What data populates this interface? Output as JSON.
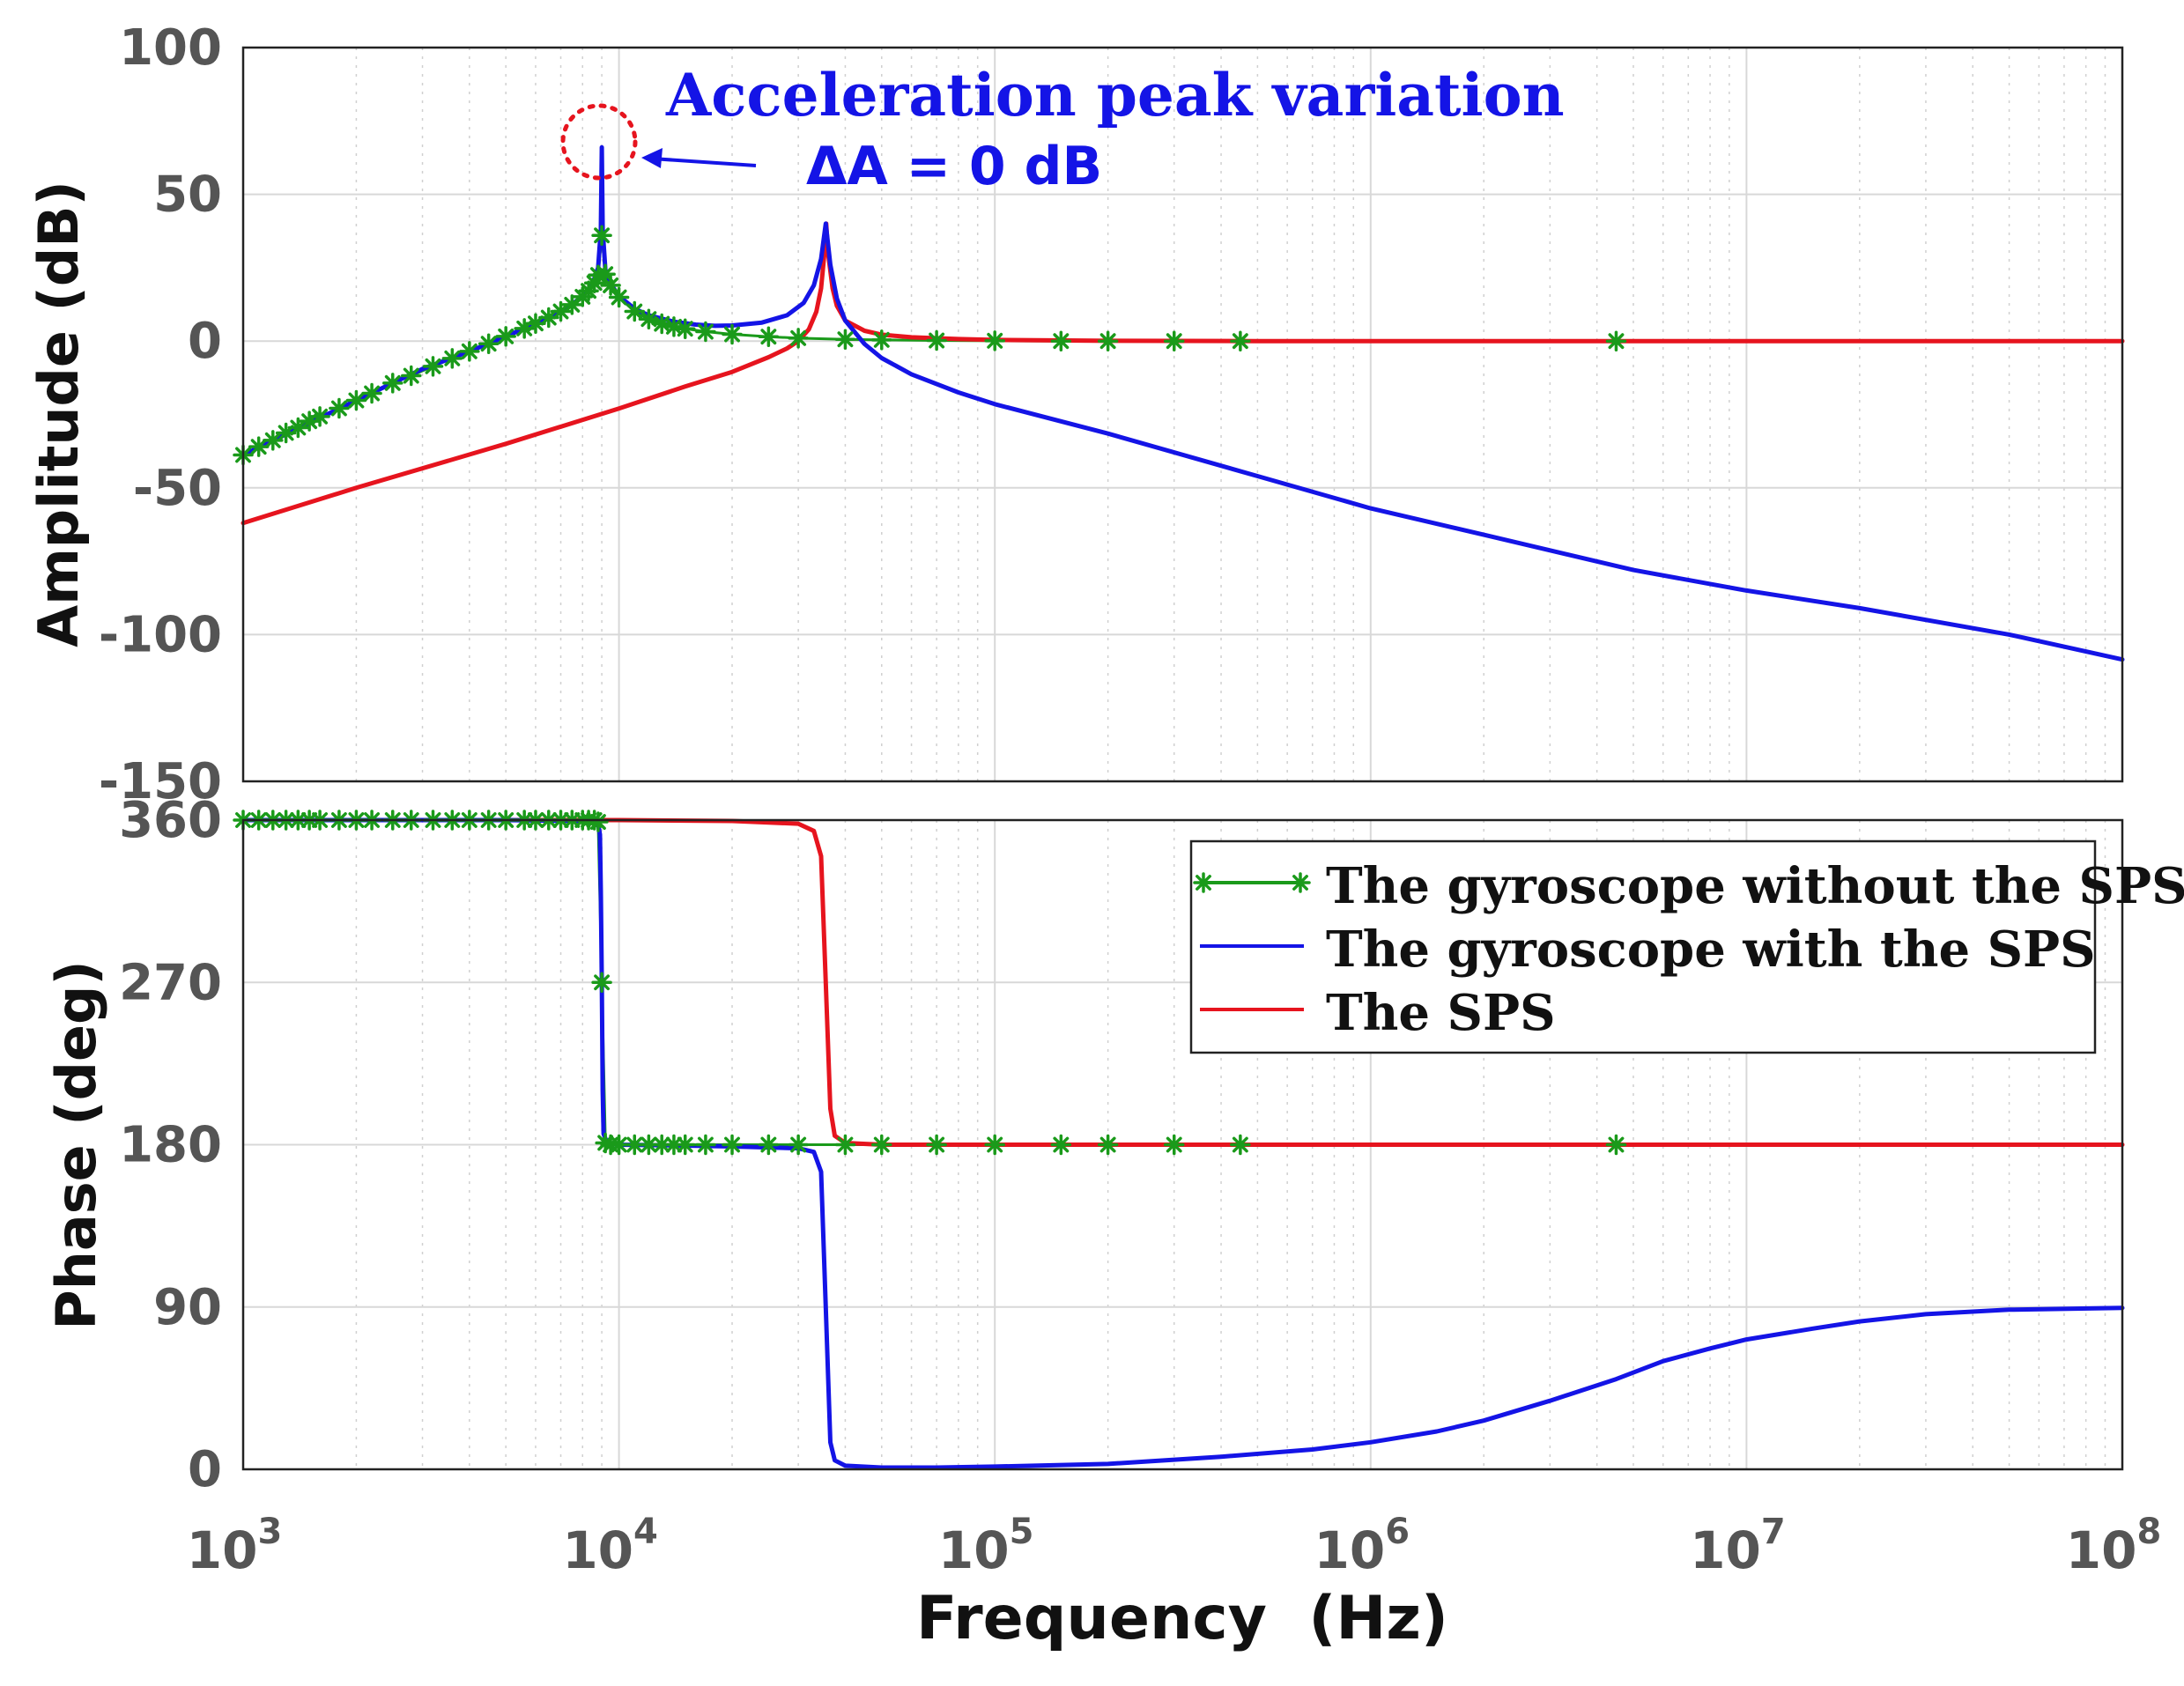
{
  "colors": {
    "without_sps": "#1a9a1a",
    "with_sps": "#1414e6",
    "sps": "#e6141e",
    "annotation": "#1414e6",
    "circle": "#e6141e"
  },
  "chart_data": [
    {
      "type": "line",
      "panel": "amplitude",
      "xscale": "log",
      "xlim": [
        1000,
        100000000
      ],
      "ylim": [
        -150,
        100
      ],
      "ylabel": "Amplitude (dB)",
      "yticks": [
        "100",
        "50",
        "0",
        "-50",
        "-100",
        "-150"
      ],
      "grid": true,
      "annotation": {
        "title": "Acceleration peak variation",
        "value": "ΔA = 0 dB",
        "peak_frequency": 9000,
        "peak_value": 66
      },
      "series": [
        {
          "name": "The gyroscope without the SPS",
          "marker": "*",
          "x": [
            1000,
            1100,
            1200,
            1300,
            1400,
            1500,
            1600,
            1800,
            2000,
            2200,
            2500,
            2800,
            3200,
            3600,
            4000,
            4500,
            5000,
            5600,
            6000,
            6500,
            7000,
            7500,
            8000,
            8300,
            8600,
            8800,
            9000,
            9200,
            9500,
            10000,
            11000,
            12000,
            13000,
            14000,
            15000,
            17000,
            20000,
            25000,
            30000,
            40000,
            50000,
            70000,
            100000,
            150000,
            200000,
            300000,
            450000,
            4500000
          ],
          "values": [
            -38.8,
            -36.0,
            -33.8,
            -31.3,
            -29.5,
            -27.3,
            -25.7,
            -22.9,
            -20.2,
            -17.8,
            -14.3,
            -11.8,
            -8.6,
            -5.9,
            -3.5,
            -0.9,
            1.6,
            4.3,
            6.0,
            8.0,
            10.1,
            12.4,
            15.1,
            17.1,
            19.8,
            22.5,
            36.0,
            22.8,
            19.0,
            14.9,
            10.1,
            7.5,
            5.9,
            4.9,
            4.2,
            3.2,
            2.3,
            1.5,
            1.0,
            0.6,
            0.4,
            0.2,
            0.1,
            0.0,
            0.0,
            0.0,
            0.0,
            0.0
          ]
        },
        {
          "name": "The gyroscope with the SPS",
          "x": [
            1000,
            2000,
            3000,
            4000,
            5000,
            6000,
            7000,
            8000,
            8500,
            8800,
            8950,
            9000,
            9050,
            9200,
            9500,
            10000,
            11000,
            12000,
            14000,
            16000,
            18000,
            20000,
            24000,
            28000,
            31000,
            33000,
            34500,
            35500,
            36500,
            38000,
            40000,
            45000,
            50000,
            60000,
            80000,
            100000,
            200000,
            500000,
            1000000,
            2000000,
            5000000,
            10000000,
            20000000,
            50000000,
            100000000
          ],
          "values": [
            -38.8,
            -20.2,
            -9.5,
            -3.5,
            1.6,
            6.0,
            10.1,
            15.1,
            19.5,
            25.0,
            38.0,
            66.0,
            38.0,
            24.0,
            19.5,
            15.3,
            11.0,
            8.8,
            6.6,
            5.6,
            5.2,
            5.3,
            6.3,
            8.8,
            13.0,
            19.0,
            28.0,
            40.0,
            26.0,
            14.5,
            7.0,
            -1.0,
            -5.8,
            -11.3,
            -17.5,
            -21.5,
            -31.5,
            -46.0,
            -57.0,
            -66.0,
            -78.0,
            -85.0,
            -91.0,
            -100.0,
            -108.5
          ]
        },
        {
          "name": "The SPS",
          "x": [
            1000,
            2000,
            5000,
            10000,
            15000,
            20000,
            25000,
            28000,
            30000,
            32000,
            33500,
            34500,
            35200,
            35600,
            36000,
            37000,
            38000,
            40000,
            45000,
            50000,
            60000,
            80000,
            100000,
            200000,
            500000,
            1000000,
            10000000,
            100000000
          ],
          "values": [
            -62.0,
            -50.0,
            -35.0,
            -23.0,
            -15.5,
            -10.5,
            -5.5,
            -2.5,
            0.0,
            4.0,
            10.0,
            18.0,
            30.0,
            40.0,
            30.0,
            18.0,
            12.0,
            7.0,
            3.5,
            2.2,
            1.3,
            0.7,
            0.4,
            0.1,
            0.0,
            0.0,
            0.0,
            0.0
          ]
        }
      ]
    },
    {
      "type": "line",
      "panel": "phase",
      "xscale": "log",
      "xlim": [
        1000,
        100000000
      ],
      "ylim": [
        0,
        360
      ],
      "xlabel": "Frequency  (Hz)",
      "ylabel": "Phase (deg)",
      "yticks": [
        "360",
        "270",
        "180",
        "90",
        "0"
      ],
      "xticks": [
        {
          "base": "10",
          "exp": "3"
        },
        {
          "base": "10",
          "exp": "4"
        },
        {
          "base": "10",
          "exp": "5"
        },
        {
          "base": "10",
          "exp": "6"
        },
        {
          "base": "10",
          "exp": "7"
        },
        {
          "base": "10",
          "exp": "8"
        }
      ],
      "grid": true,
      "legend": {
        "position": "top-right",
        "entries": [
          "The gyroscope without the SPS",
          "The gyroscope with the SPS",
          "The SPS"
        ]
      },
      "series": [
        {
          "name": "The gyroscope without the SPS",
          "marker": "*",
          "x": [
            1000,
            1100,
            1200,
            1300,
            1400,
            1500,
            1600,
            1800,
            2000,
            2200,
            2500,
            2800,
            3200,
            3600,
            4000,
            4500,
            5000,
            5600,
            6000,
            6500,
            7000,
            7500,
            8000,
            8300,
            8600,
            8800,
            9000,
            9200,
            9500,
            10000,
            11000,
            12000,
            13000,
            14000,
            15000,
            17000,
            20000,
            25000,
            30000,
            40000,
            50000,
            70000,
            100000,
            150000,
            200000,
            300000,
            450000,
            4500000
          ],
          "values": [
            360,
            360,
            360,
            360,
            360,
            360,
            360,
            360,
            360,
            360,
            360,
            360,
            360,
            360,
            360,
            360,
            360,
            360,
            360,
            360,
            360,
            360,
            360,
            360,
            360,
            359,
            270,
            181,
            180,
            180,
            180,
            180,
            180,
            180,
            180,
            180,
            180,
            180,
            180,
            180,
            180,
            180,
            180,
            180,
            180,
            180,
            180,
            180
          ]
        },
        {
          "name": "The gyroscope with the SPS",
          "x": [
            1000,
            5000,
            8000,
            8800,
            8900,
            8950,
            9000,
            9050,
            9100,
            9300,
            10000,
            15000,
            20000,
            30000,
            33000,
            34500,
            35500,
            36500,
            37500,
            40000,
            50000,
            70000,
            100000,
            200000,
            400000,
            700000,
            1000000,
            1500000,
            2000000,
            3000000,
            4500000,
            6000000,
            8000000,
            10000000,
            15000000,
            20000000,
            30000000,
            50000000,
            100000000
          ],
          "values": [
            360,
            360,
            359.5,
            358,
            352,
            320,
            270,
            210,
            186,
            181,
            180,
            179.5,
            179,
            178,
            176,
            165,
            90,
            15,
            5,
            2,
            1,
            1,
            1.5,
            3,
            7,
            11,
            15,
            21,
            27,
            38,
            50,
            60,
            67,
            72,
            78,
            82,
            86,
            88.5,
            89.5
          ]
        },
        {
          "name": "The SPS",
          "x": [
            1000,
            10000,
            20000,
            30000,
            33000,
            34500,
            35500,
            36500,
            37500,
            40000,
            50000,
            100000,
            1000000,
            100000000
          ],
          "values": [
            360,
            360,
            359.5,
            358,
            354,
            340,
            270,
            200,
            185,
            181,
            180,
            180,
            180,
            180
          ]
        }
      ]
    }
  ]
}
